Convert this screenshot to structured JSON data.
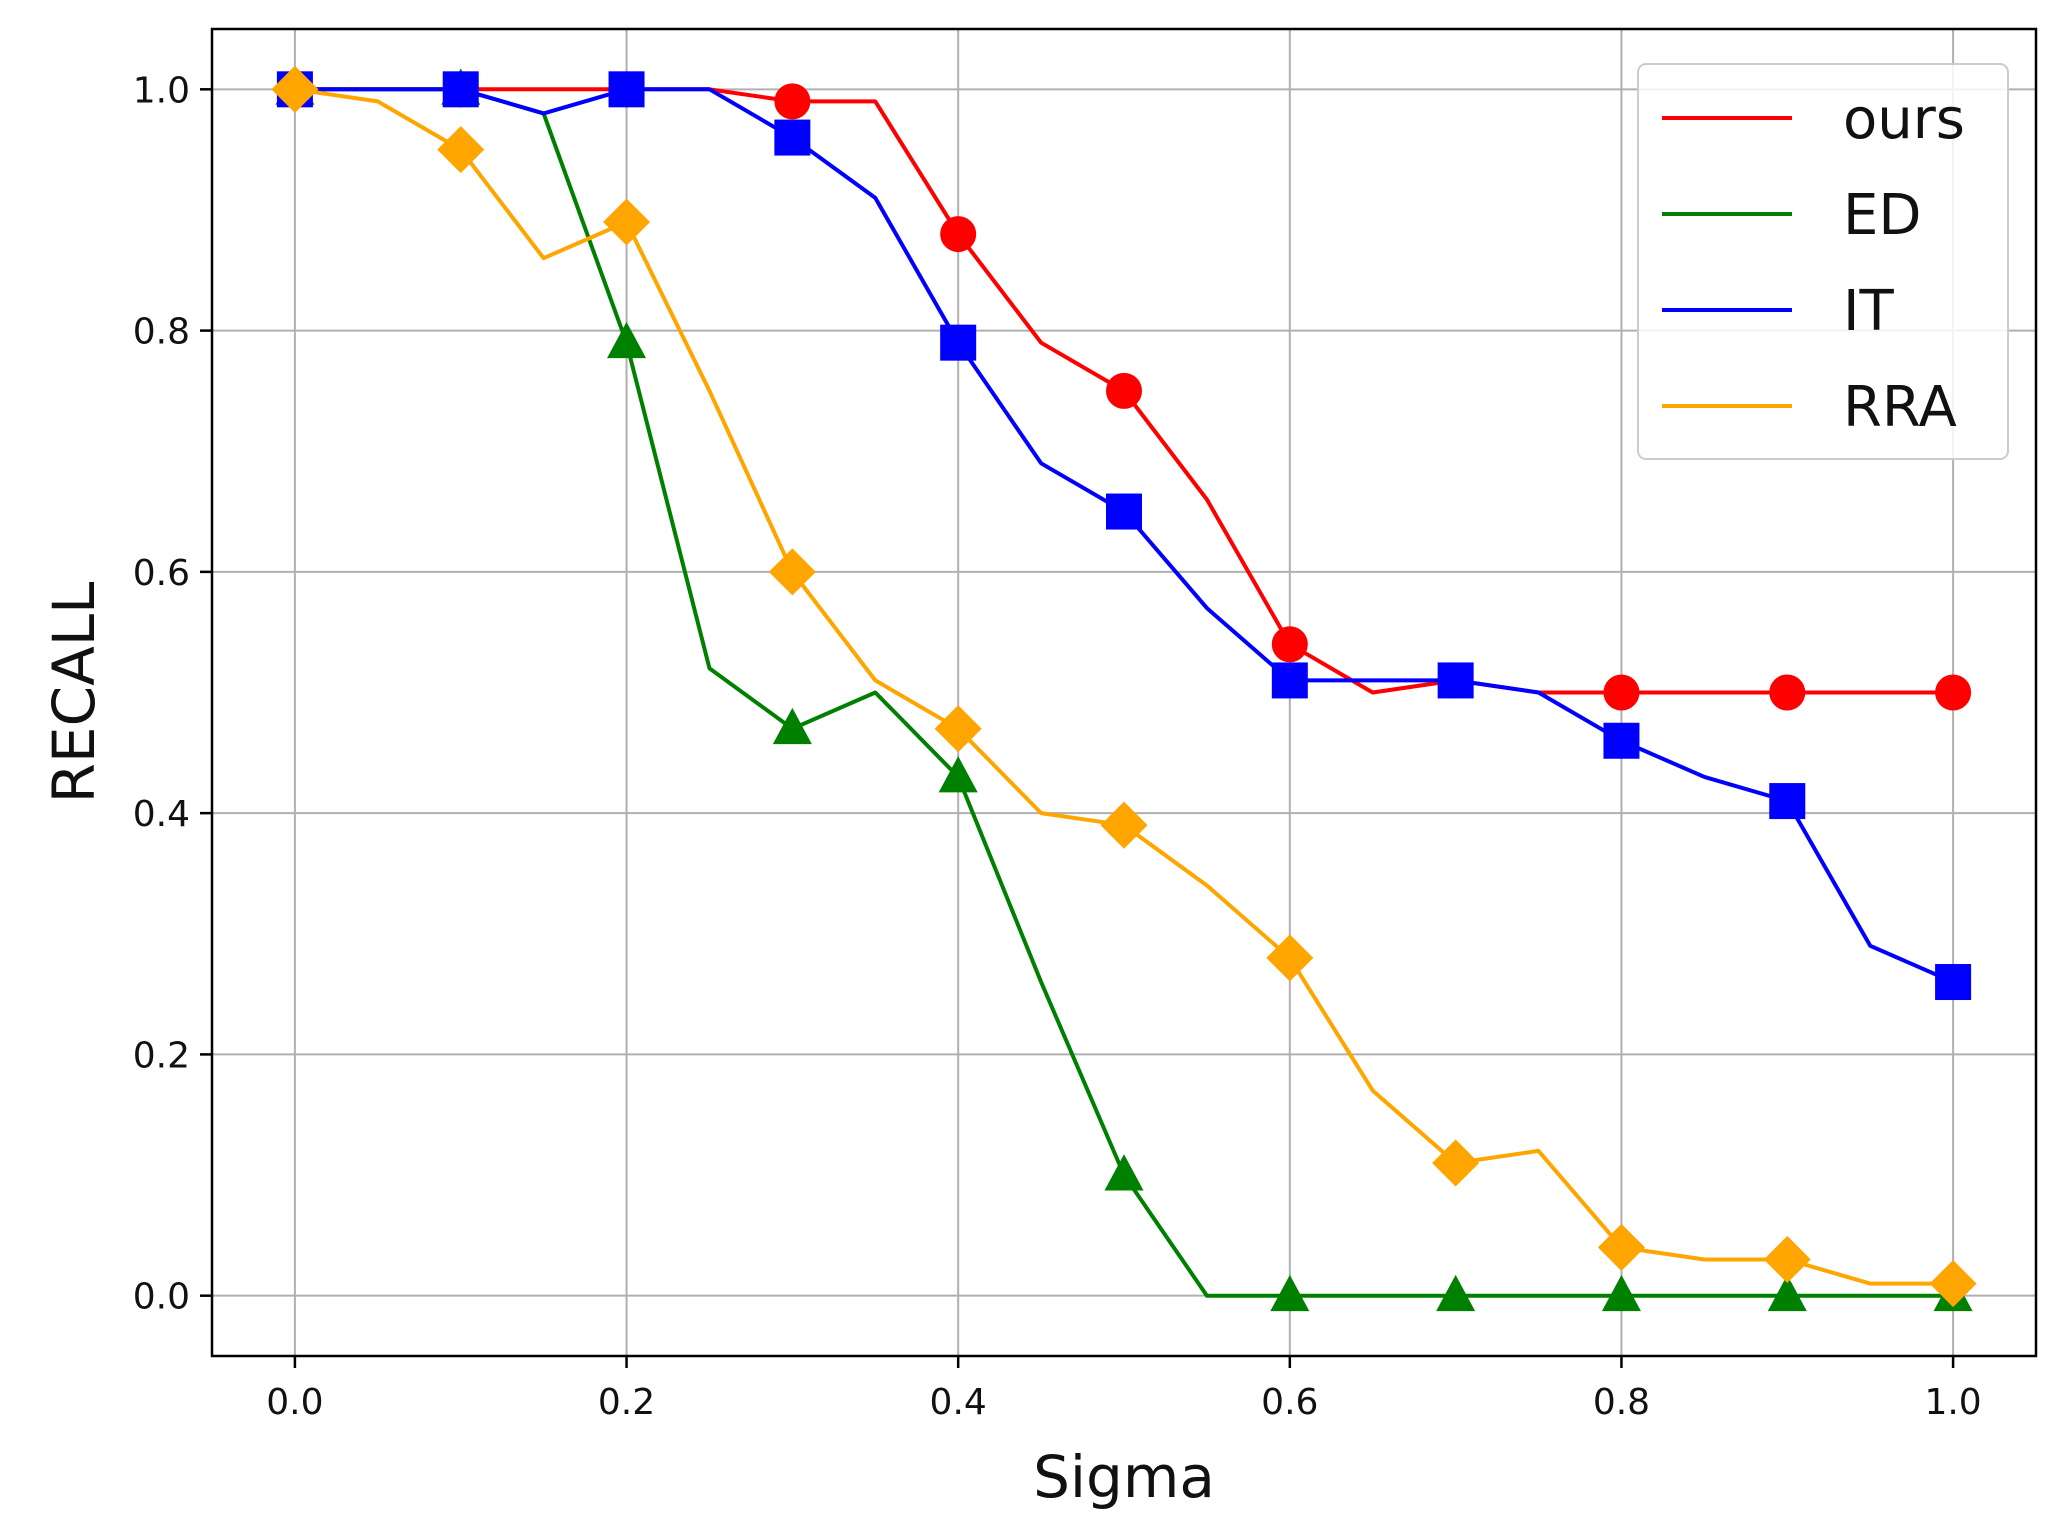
{
  "chart_data": {
    "type": "line",
    "title": "",
    "xlabel": "Sigma",
    "ylabel": "RECALL",
    "xlim": [
      -0.05,
      1.05
    ],
    "ylim": [
      -0.05,
      1.05
    ],
    "xticks": [
      0.0,
      0.2,
      0.4,
      0.6,
      0.8,
      1.0
    ],
    "yticks": [
      0.0,
      0.2,
      0.4,
      0.6,
      0.8,
      1.0
    ],
    "xtick_labels": [
      "0.0",
      "0.2",
      "0.4",
      "0.6",
      "0.8",
      "1.0"
    ],
    "ytick_labels": [
      "0.0",
      "0.2",
      "0.4",
      "0.6",
      "0.8",
      "1.0"
    ],
    "grid": true,
    "legend_position": "top-right",
    "series": [
      {
        "name": "ours",
        "color": "#ff0000",
        "marker": "circle",
        "x": [
          0.0,
          0.05,
          0.1,
          0.15,
          0.2,
          0.25,
          0.3,
          0.35,
          0.4,
          0.45,
          0.5,
          0.55,
          0.6,
          0.65,
          0.7,
          0.75,
          0.8,
          0.85,
          0.9,
          0.95,
          1.0
        ],
        "values": [
          1.0,
          1.0,
          1.0,
          1.0,
          1.0,
          1.0,
          0.99,
          0.99,
          0.88,
          0.79,
          0.75,
          0.66,
          0.54,
          0.5,
          0.51,
          0.5,
          0.5,
          0.5,
          0.5,
          0.5,
          0.5
        ]
      },
      {
        "name": "ED",
        "color": "#008000",
        "marker": "triangle",
        "x": [
          0.0,
          0.05,
          0.1,
          0.15,
          0.2,
          0.25,
          0.3,
          0.35,
          0.4,
          0.45,
          0.5,
          0.55,
          0.6,
          0.65,
          0.7,
          0.75,
          0.8,
          0.85,
          0.9,
          0.95,
          1.0
        ],
        "values": [
          1.0,
          1.0,
          1.0,
          0.98,
          0.79,
          0.52,
          0.47,
          0.5,
          0.43,
          0.26,
          0.1,
          0.0,
          0.0,
          0.0,
          0.0,
          0.0,
          0.0,
          0.0,
          0.0,
          0.0,
          0.0
        ]
      },
      {
        "name": "IT",
        "color": "#0000ff",
        "marker": "square",
        "x": [
          0.0,
          0.05,
          0.1,
          0.15,
          0.2,
          0.25,
          0.3,
          0.35,
          0.4,
          0.45,
          0.5,
          0.55,
          0.6,
          0.65,
          0.7,
          0.75,
          0.8,
          0.85,
          0.9,
          0.95,
          1.0
        ],
        "values": [
          1.0,
          1.0,
          1.0,
          0.98,
          1.0,
          1.0,
          0.96,
          0.91,
          0.79,
          0.69,
          0.65,
          0.57,
          0.51,
          0.51,
          0.51,
          0.5,
          0.46,
          0.43,
          0.41,
          0.29,
          0.26
        ]
      },
      {
        "name": "RRA",
        "color": "#ffa500",
        "marker": "diamond",
        "x": [
          0.0,
          0.05,
          0.1,
          0.15,
          0.2,
          0.25,
          0.3,
          0.35,
          0.4,
          0.45,
          0.5,
          0.55,
          0.6,
          0.65,
          0.7,
          0.75,
          0.8,
          0.85,
          0.9,
          0.95,
          1.0
        ],
        "values": [
          1.0,
          0.99,
          0.95,
          0.86,
          0.89,
          0.75,
          0.6,
          0.51,
          0.47,
          0.4,
          0.39,
          0.34,
          0.28,
          0.17,
          0.11,
          0.12,
          0.04,
          0.03,
          0.03,
          0.01,
          0.01
        ]
      }
    ],
    "marker_every": 2
  }
}
